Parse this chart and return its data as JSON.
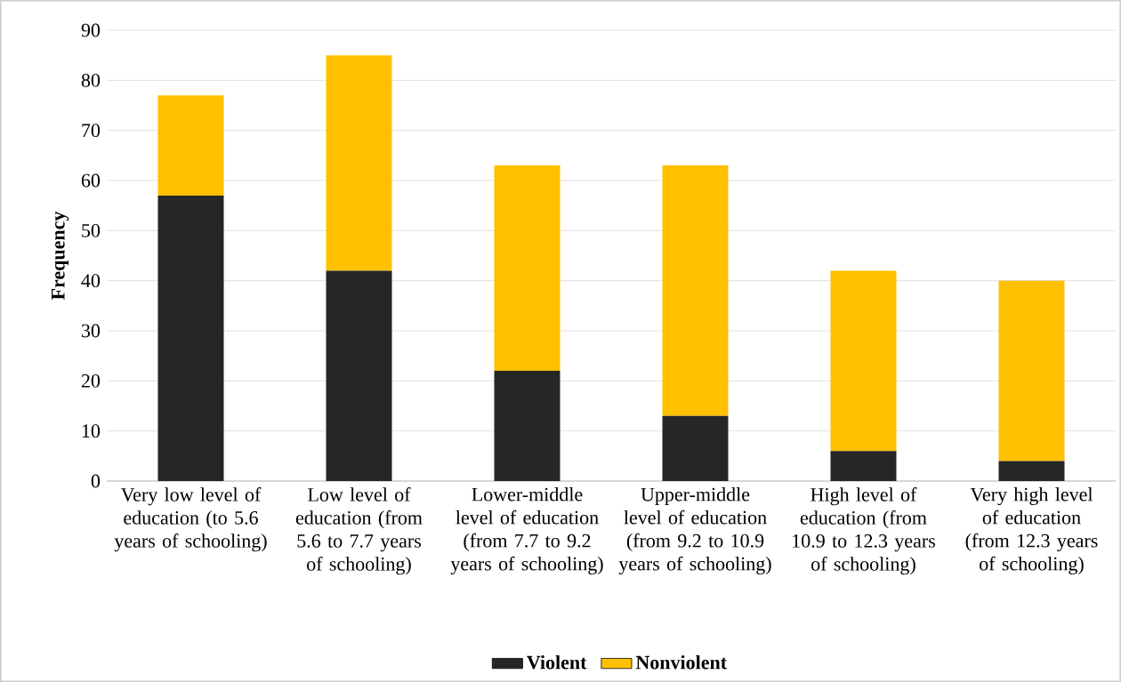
{
  "chart_data": {
    "type": "bar",
    "stacked": true,
    "ylabel": "Frequency",
    "categories": [
      "Very low level of education (to 5.6 years of schooling)",
      "Low level of education (from 5.6 to 7.7 years of schooling)",
      "Lower-middle level of education (from 7.7 to 9.2 years of schooling)",
      "Upper-middle level of education (from 9.2 to 10.9 years of schooling)",
      "High level of education (from 10.9 to 12.3 years of schooling)",
      "Very high level of education (from 12.3 years of schooling)"
    ],
    "series": [
      {
        "name": "Violent",
        "color": "#262626",
        "values": [
          57,
          42,
          22,
          13,
          6,
          4
        ]
      },
      {
        "name": "Nonviolent",
        "color": "#ffc000",
        "values": [
          20,
          43,
          41,
          50,
          36,
          36
        ]
      }
    ],
    "ylim": [
      0,
      90
    ],
    "yticks": [
      0,
      10,
      20,
      30,
      40,
      50,
      60,
      70,
      80,
      90
    ],
    "grid": "y",
    "legend": "bottom"
  }
}
